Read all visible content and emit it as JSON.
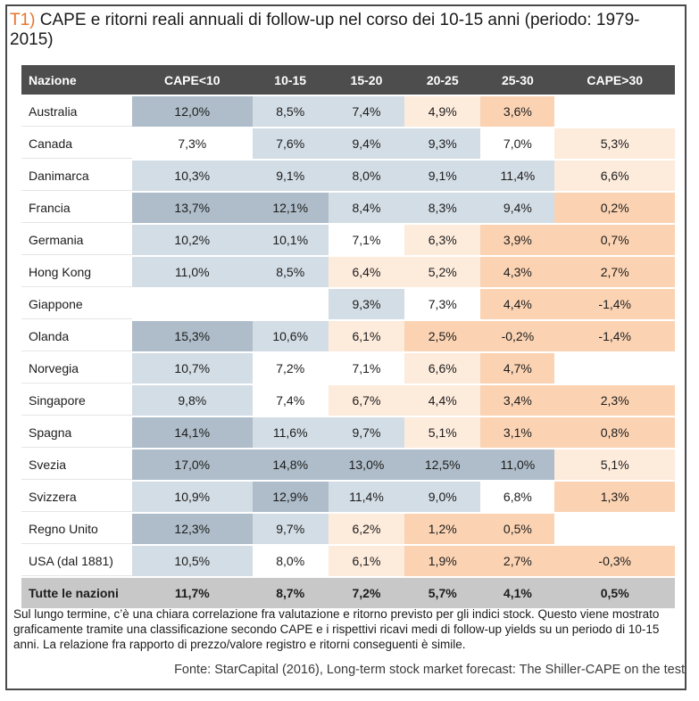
{
  "title": {
    "tag": "T1)",
    "text": "CAPE e ritorni reali annuali di follow-up nel corso dei 10-15 anni (periodo: 1979-2015)"
  },
  "colors": {
    "header_bg": "#4d4d4d",
    "blue_strong": "#aebdc9",
    "blue_light": "#d3dde5",
    "orange": "#fbd3b3",
    "orange_light": "#fdebdc",
    "total_bg": "#c8c8c8"
  },
  "chart_data": {
    "type": "table",
    "columns": [
      "Nazione",
      "CAPE<10",
      "10-15",
      "15-20",
      "20-25",
      "25-30",
      "CAPE>30"
    ],
    "rows": [
      {
        "name": "Australia",
        "values": [
          "12,0%",
          "8,5%",
          "7,4%",
          "4,9%",
          "3,6%",
          ""
        ],
        "shade": [
          "b2",
          "b1",
          "b1",
          "o2",
          "o1",
          "n"
        ]
      },
      {
        "name": "Canada",
        "values": [
          "7,3%",
          "7,6%",
          "9,4%",
          "9,3%",
          "7,0%",
          "5,3%"
        ],
        "shade": [
          "n",
          "b1",
          "b1",
          "b1",
          "n",
          "o2"
        ]
      },
      {
        "name": "Danimarca",
        "values": [
          "10,3%",
          "9,1%",
          "8,0%",
          "9,1%",
          "11,4%",
          "6,6%"
        ],
        "shade": [
          "b1",
          "b1",
          "b1",
          "b1",
          "b1",
          "o2"
        ]
      },
      {
        "name": "Francia",
        "values": [
          "13,7%",
          "12,1%",
          "8,4%",
          "8,3%",
          "9,4%",
          "0,2%"
        ],
        "shade": [
          "b2",
          "b2",
          "b1",
          "b1",
          "b1",
          "o1"
        ]
      },
      {
        "name": "Germania",
        "values": [
          "10,2%",
          "10,1%",
          "7,1%",
          "6,3%",
          "3,9%",
          "0,7%"
        ],
        "shade": [
          "b1",
          "b1",
          "n",
          "o2",
          "o1",
          "o1"
        ]
      },
      {
        "name": "Hong Kong",
        "values": [
          "11,0%",
          "8,5%",
          "6,4%",
          "5,2%",
          "4,3%",
          "2,7%"
        ],
        "shade": [
          "b1",
          "b1",
          "o2",
          "o2",
          "o1",
          "o1"
        ]
      },
      {
        "name": "Giappone",
        "values": [
          "",
          "",
          "9,3%",
          "7,3%",
          "4,4%",
          "-1,4%"
        ],
        "shade": [
          "n",
          "n",
          "b1",
          "n",
          "o1",
          "o1"
        ]
      },
      {
        "name": "Olanda",
        "values": [
          "15,3%",
          "10,6%",
          "6,1%",
          "2,5%",
          "-0,2%",
          "-1,4%"
        ],
        "shade": [
          "b2",
          "b1",
          "o2",
          "o1",
          "o1",
          "o1"
        ]
      },
      {
        "name": "Norvegia",
        "values": [
          "10,7%",
          "7,2%",
          "7,1%",
          "6,6%",
          "4,7%",
          ""
        ],
        "shade": [
          "b1",
          "n",
          "n",
          "o2",
          "o1",
          "n"
        ]
      },
      {
        "name": "Singapore",
        "values": [
          "9,8%",
          "7,4%",
          "6,7%",
          "4,4%",
          "3,4%",
          "2,3%"
        ],
        "shade": [
          "b1",
          "n",
          "o2",
          "o2",
          "o1",
          "o1"
        ]
      },
      {
        "name": "Spagna",
        "values": [
          "14,1%",
          "11,6%",
          "9,7%",
          "5,1%",
          "3,1%",
          "0,8%"
        ],
        "shade": [
          "b2",
          "b1",
          "b1",
          "o2",
          "o1",
          "o1"
        ]
      },
      {
        "name": "Svezia",
        "values": [
          "17,0%",
          "14,8%",
          "13,0%",
          "12,5%",
          "11,0%",
          "5,1%"
        ],
        "shade": [
          "b2",
          "b2",
          "b2",
          "b2",
          "b2",
          "o2"
        ]
      },
      {
        "name": "Svizzera",
        "values": [
          "10,9%",
          "12,9%",
          "11,4%",
          "9,0%",
          "6,8%",
          "1,3%"
        ],
        "shade": [
          "b1",
          "b2",
          "b1",
          "b1",
          "n",
          "o1"
        ]
      },
      {
        "name": "Regno Unito",
        "values": [
          "12,3%",
          "9,7%",
          "6,2%",
          "1,2%",
          "0,5%",
          ""
        ],
        "shade": [
          "b2",
          "b1",
          "o2",
          "o1",
          "o1",
          "n"
        ]
      },
      {
        "name": "USA (dal 1881)",
        "values": [
          "10,5%",
          "8,0%",
          "6,1%",
          "1,9%",
          "2,7%",
          "-0,3%"
        ],
        "shade": [
          "b1",
          "n",
          "o2",
          "o1",
          "o1",
          "o1"
        ]
      }
    ],
    "total": {
      "name": "Tutte le nazioni",
      "values": [
        "11,7%",
        "8,7%",
        "7,2%",
        "5,7%",
        "4,1%",
        "0,5%"
      ]
    }
  },
  "caption": "Sul lungo termine, c’è una chiara correlazione fra valutazione e ritorno previsto per gli indici stock. Questo viene mostrato graficamente tramite una classificazione secondo CAPE e i rispettivi ricavi medi di follow-up yields su un periodo di 10-15 anni. La relazione fra rapporto di prezzo/valore registro e ritorni conseguenti è simile.",
  "source": "Fonte: StarCapital (2016), Long-term stock market forecast: The Shiller-CAPE on the test"
}
